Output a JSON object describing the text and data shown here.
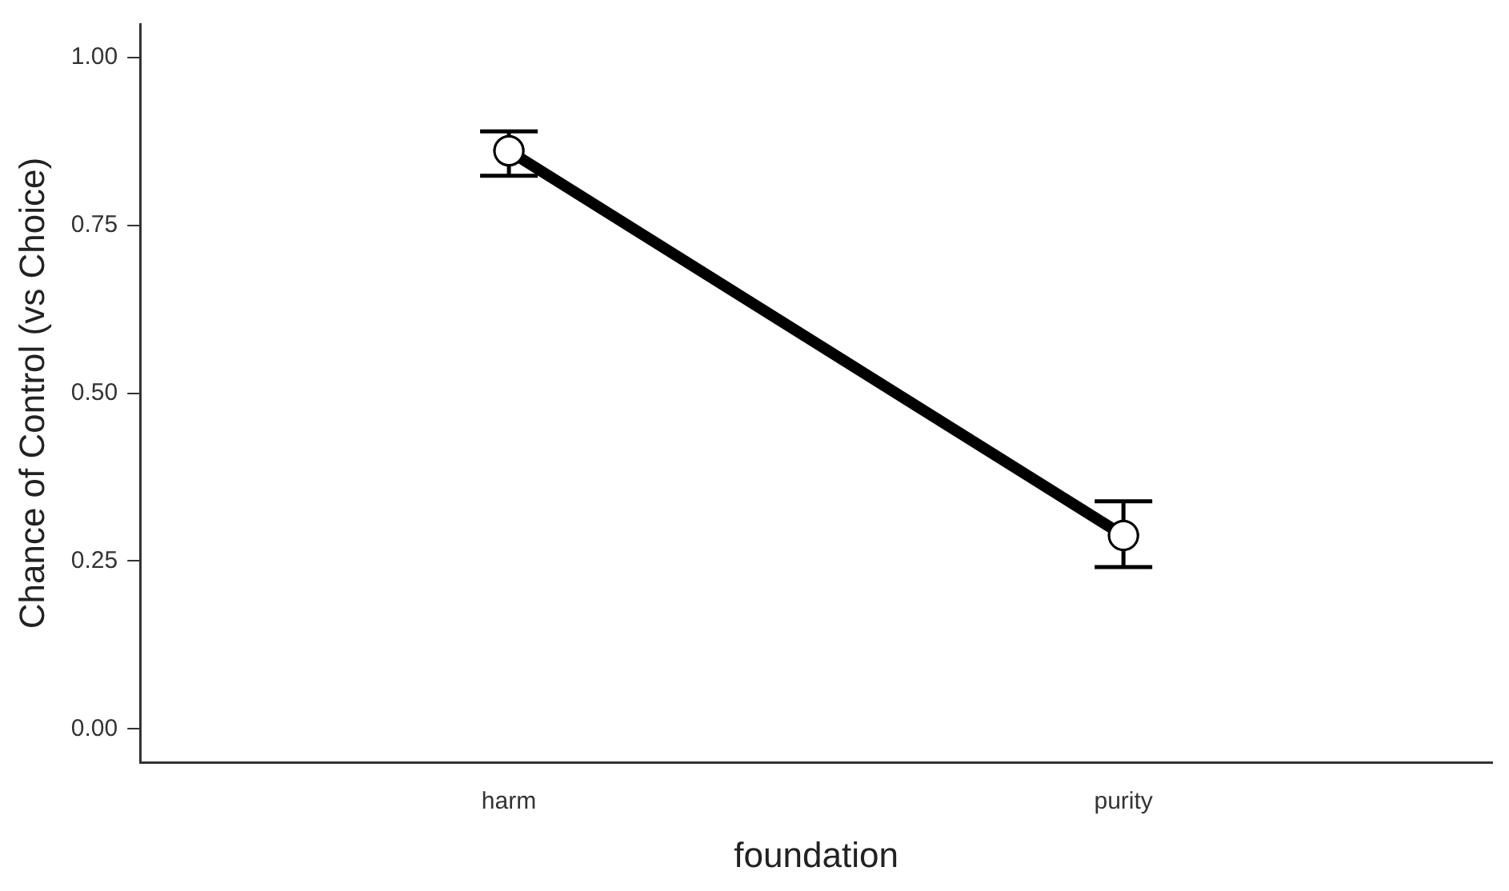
{
  "chart_data": {
    "type": "line",
    "xlabel": "foundation",
    "ylabel": "Chance of Control (vs Choice)",
    "categories": [
      "harm",
      "purity"
    ],
    "series": [
      {
        "color": "#000000",
        "values": [
          0.861,
          0.288
        ],
        "errors": [
          [
            0.824,
            0.89
          ],
          [
            0.241,
            0.339
          ]
        ]
      }
    ],
    "ylim": [
      -0.05,
      1.05
    ],
    "yticks": [
      {
        "value": 0,
        "label": "0.00"
      },
      {
        "value": 0.25,
        "label": "0.25"
      },
      {
        "value": 0.5,
        "label": "0.50"
      },
      {
        "value": 0.75,
        "label": "0.75"
      },
      {
        "value": 1,
        "label": "1.00"
      }
    ],
    "grid": false,
    "legend": false,
    "marker": "circle",
    "line_style": "solid"
  }
}
